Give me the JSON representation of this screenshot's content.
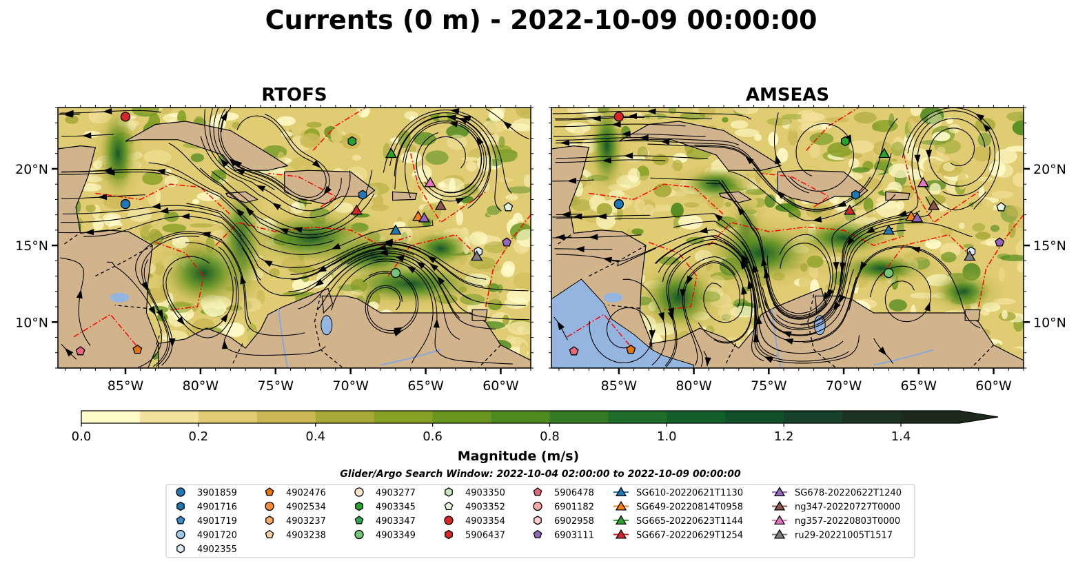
{
  "figure_title": "Currents (0 m) - 2022-10-09 00:00:00",
  "colors": {
    "land": "#d2b48c",
    "water": "#93b5e0",
    "eez": "#ff0000",
    "cmap": [
      "#fffbc9",
      "#f3e29c",
      "#e0cc72",
      "#cbb955",
      "#a9a93a",
      "#87a026",
      "#6a951f",
      "#4e8a1f",
      "#347b23",
      "#1f6d2a",
      "#135f2a",
      "#11502a",
      "#17412a",
      "#1c3322",
      "#1c2a1a"
    ]
  },
  "chart_data": [
    {
      "type": "heatmap",
      "title": "RTOFS",
      "variable": "Currents (0 m)",
      "xlabel": "",
      "ylabel": "",
      "xlim": [
        -89.5,
        -58.0
      ],
      "ylim": [
        7.0,
        24.0
      ],
      "x_ticks": [
        "85°W",
        "80°W",
        "75°W",
        "70°W",
        "65°W",
        "60°W"
      ],
      "y_ticks": [
        "20°N",
        "15°N",
        "10°N"
      ],
      "streamlines": true,
      "floats": [
        {
          "id": "3901859",
          "lon": -85.0,
          "lat": 17.7
        },
        {
          "id": "4903354",
          "lon": -85.0,
          "lat": 23.4
        },
        {
          "id": "4901716",
          "lon": -69.2,
          "lat": 18.3
        },
        {
          "id": "4903345",
          "lon": -69.9,
          "lat": 21.8
        },
        {
          "id": "4902476",
          "lon": -84.2,
          "lat": 8.2
        },
        {
          "id": "4903349",
          "lon": -67.0,
          "lat": 13.2
        },
        {
          "id": "4902355",
          "lon": -61.5,
          "lat": 14.6
        },
        {
          "id": "5906478",
          "lon": -88.0,
          "lat": 8.1
        },
        {
          "id": "4903352",
          "lon": -59.5,
          "lat": 17.5
        },
        {
          "id": "6903111",
          "lon": -59.6,
          "lat": 15.2
        }
      ],
      "gliders": [
        {
          "id": "SG610-20220621T1130",
          "lon": -67.0,
          "lat": 16.0
        },
        {
          "id": "SG649-20220814T0958",
          "lon": -65.5,
          "lat": 16.9
        },
        {
          "id": "SG665-20220623T1144",
          "lon": -67.3,
          "lat": 21.0
        },
        {
          "id": "SG667-20220629T1254",
          "lon": -69.6,
          "lat": 17.3
        },
        {
          "id": "SG678-20220622T1240",
          "lon": -65.1,
          "lat": 16.8
        },
        {
          "id": "ng347-20220727T0000",
          "lon": -64.0,
          "lat": 17.6
        },
        {
          "id": "ng357-20220803T0000",
          "lon": -64.7,
          "lat": 19.1
        },
        {
          "id": "ru29-20221005T1517",
          "lon": -61.6,
          "lat": 14.3
        }
      ]
    },
    {
      "type": "heatmap",
      "title": "AMSEAS",
      "variable": "Currents (0 m)",
      "xlabel": "",
      "ylabel": "",
      "xlim": [
        -89.5,
        -58.0
      ],
      "ylim": [
        7.0,
        24.0
      ],
      "x_ticks": [
        "85°W",
        "80°W",
        "75°W",
        "70°W",
        "65°W",
        "60°W"
      ],
      "y_ticks": [
        "20°N",
        "15°N",
        "10°N"
      ],
      "streamlines": true,
      "floats": [
        {
          "id": "3901859",
          "lon": -85.0,
          "lat": 17.7
        },
        {
          "id": "4903354",
          "lon": -85.0,
          "lat": 23.4
        },
        {
          "id": "4901716",
          "lon": -69.2,
          "lat": 18.3
        },
        {
          "id": "4903345",
          "lon": -69.9,
          "lat": 21.8
        },
        {
          "id": "4902476",
          "lon": -84.2,
          "lat": 8.2
        },
        {
          "id": "4903349",
          "lon": -67.0,
          "lat": 13.2
        },
        {
          "id": "4902355",
          "lon": -61.5,
          "lat": 14.6
        },
        {
          "id": "5906478",
          "lon": -88.0,
          "lat": 8.1
        },
        {
          "id": "4903352",
          "lon": -59.5,
          "lat": 17.5
        },
        {
          "id": "6903111",
          "lon": -59.6,
          "lat": 15.2
        }
      ],
      "gliders": [
        {
          "id": "SG610-20220621T1130",
          "lon": -67.0,
          "lat": 16.0
        },
        {
          "id": "SG649-20220814T0958",
          "lon": -65.5,
          "lat": 16.9
        },
        {
          "id": "SG665-20220623T1144",
          "lon": -67.3,
          "lat": 21.0
        },
        {
          "id": "SG667-20220629T1254",
          "lon": -69.6,
          "lat": 17.3
        },
        {
          "id": "SG678-20220622T1240",
          "lon": -65.1,
          "lat": 16.8
        },
        {
          "id": "ng347-20220727T0000",
          "lon": -64.0,
          "lat": 17.6
        },
        {
          "id": "ng357-20220803T0000",
          "lon": -64.7,
          "lat": 19.1
        },
        {
          "id": "ru29-20221005T1517",
          "lon": -61.6,
          "lat": 14.3
        }
      ]
    }
  ],
  "colorbar": {
    "label": "Magnitude (m/s)",
    "min": 0.0,
    "max": 1.5,
    "ticks": [
      "0.0",
      "0.2",
      "0.4",
      "0.6",
      "0.8",
      "1.0",
      "1.2",
      "1.4"
    ]
  },
  "search_window": "Glider/Argo Search Window: 2022-10-04 02:00:00 to 2022-10-09 00:00:00",
  "legend": [
    {
      "label": "3901859",
      "marker": "circle",
      "color": "#1f77b4"
    },
    {
      "label": "4901716",
      "marker": "hexagon",
      "color": "#1f77b4"
    },
    {
      "label": "4901719",
      "marker": "pentagon",
      "color": "#3a8fd0"
    },
    {
      "label": "4901720",
      "marker": "circle",
      "color": "#9ecae9"
    },
    {
      "label": "4902355",
      "marker": "hexagon",
      "color": "#deebf7"
    },
    {
      "label": "4902476",
      "marker": "pentagon",
      "color": "#e6740b"
    },
    {
      "label": "4902534",
      "marker": "circle",
      "color": "#fd8d3c"
    },
    {
      "label": "4903237",
      "marker": "hexagon",
      "color": "#fdae6b"
    },
    {
      "label": "4903238",
      "marker": "pentagon",
      "color": "#fdd0a2"
    },
    {
      "label": "4903277",
      "marker": "circle",
      "color": "#fee6ce"
    },
    {
      "label": "4903345",
      "marker": "hexagon",
      "color": "#2ca02c"
    },
    {
      "label": "4903347",
      "marker": "pentagon",
      "color": "#31a354"
    },
    {
      "label": "4903349",
      "marker": "circle",
      "color": "#74c476"
    },
    {
      "label": "4903350",
      "marker": "hexagon",
      "color": "#c7e9c0"
    },
    {
      "label": "4903352",
      "marker": "pentagon",
      "color": "#e5f5e0"
    },
    {
      "label": "4903354",
      "marker": "circle",
      "color": "#d62728"
    },
    {
      "label": "5906437",
      "marker": "hexagon",
      "color": "#d62728"
    },
    {
      "label": "5906478",
      "marker": "pentagon",
      "color": "#e36a7a"
    },
    {
      "label": "6901182",
      "marker": "circle",
      "color": "#f4a6a6"
    },
    {
      "label": "6902958",
      "marker": "hexagon",
      "color": "#fcd0d0"
    },
    {
      "label": "6903111",
      "marker": "pentagon",
      "color": "#9467bd"
    },
    {
      "label": "SG610-20220621T1130",
      "marker": "triangle",
      "color": "#1f77b4"
    },
    {
      "label": "SG649-20220814T0958",
      "marker": "triangle",
      "color": "#ff7f0e"
    },
    {
      "label": "SG665-20220623T1144",
      "marker": "triangle",
      "color": "#2ca02c"
    },
    {
      "label": "SG667-20220629T1254",
      "marker": "triangle",
      "color": "#d62728"
    },
    {
      "label": "SG678-20220622T1240",
      "marker": "triangle",
      "color": "#9467bd"
    },
    {
      "label": "ng347-20220727T0000",
      "marker": "triangle",
      "color": "#8c564b"
    },
    {
      "label": "ng357-20220803T0000",
      "marker": "triangle",
      "color": "#e377c2"
    },
    {
      "label": "ru29-20221005T1517",
      "marker": "triangle",
      "color": "#7f7f7f"
    }
  ]
}
